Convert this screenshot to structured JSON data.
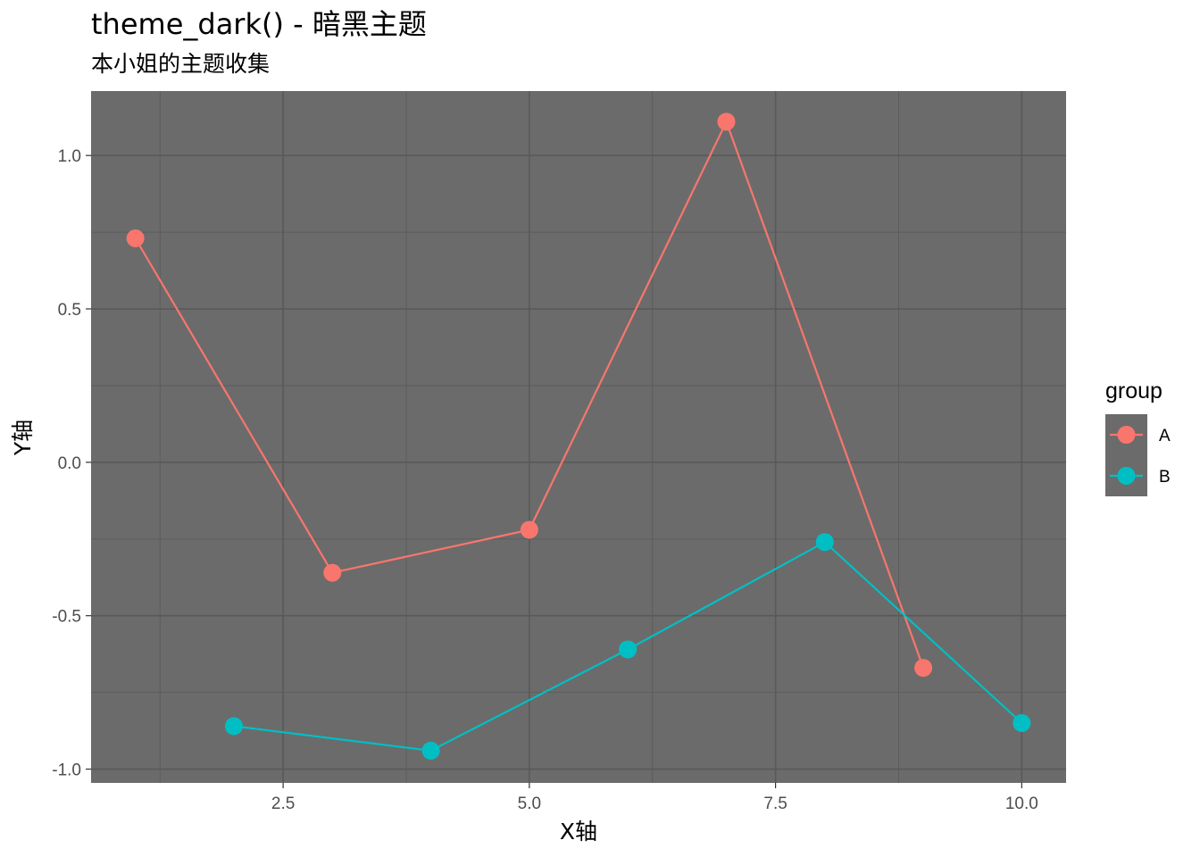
{
  "chart_data": {
    "type": "line",
    "title": "theme_dark() - 暗黑主题",
    "subtitle": "本小姐的主题收集",
    "xlabel": "X轴",
    "ylabel": "Y轴",
    "xlim": [
      0.55,
      10.45
    ],
    "ylim": [
      -1.045,
      1.21
    ],
    "x_ticks": [
      2.5,
      5.0,
      7.5,
      10.0
    ],
    "x_tick_labels": [
      "2.5",
      "5.0",
      "7.5",
      "10.0"
    ],
    "x_minor": [
      1.25,
      3.75,
      6.25,
      8.75
    ],
    "y_ticks": [
      1.0,
      0.5,
      0.0,
      -0.5,
      -1.0
    ],
    "y_tick_labels": [
      "1.0",
      "0.5",
      "0.0",
      "-0.5",
      "-1.0"
    ],
    "y_minor": [
      0.75,
      0.25,
      -0.25,
      -0.75
    ],
    "grid": true,
    "panel_background": "#6b6b6b",
    "grid_color": "#595959",
    "legend": {
      "title": "group",
      "position": "right",
      "background": "#6b6b6b"
    },
    "series": [
      {
        "name": "A",
        "color": "#F8766D",
        "x": [
          1,
          3,
          5,
          7,
          9
        ],
        "y": [
          0.73,
          -0.36,
          -0.22,
          1.11,
          -0.67
        ]
      },
      {
        "name": "B",
        "color": "#00BFC4",
        "x": [
          2,
          4,
          6,
          8,
          10
        ],
        "y": [
          -0.86,
          -0.94,
          -0.61,
          -0.26,
          -0.85
        ]
      }
    ]
  }
}
